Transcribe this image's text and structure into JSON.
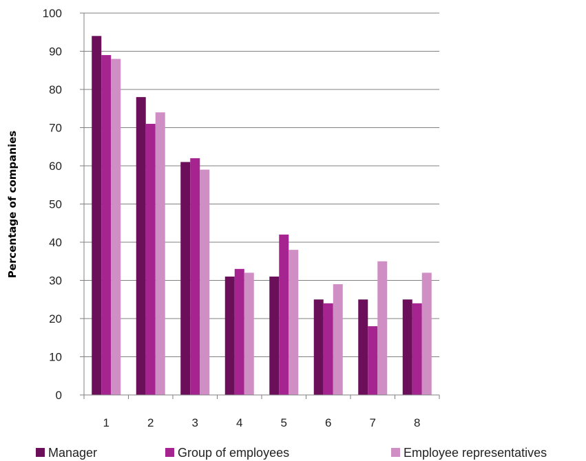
{
  "chart_data": {
    "type": "bar",
    "categories": [
      "1",
      "2",
      "3",
      "4",
      "5",
      "6",
      "7",
      "8"
    ],
    "series": [
      {
        "name": "Manager",
        "color": "#6b0f5a",
        "values": [
          94,
          78,
          61,
          31,
          31,
          25,
          25,
          25
        ]
      },
      {
        "name": "Group of employees",
        "color": "#a6248f",
        "values": [
          89,
          71,
          62,
          33,
          42,
          24,
          18,
          24
        ]
      },
      {
        "name": "Employee representatives",
        "color": "#cf8fc4",
        "values": [
          88,
          74,
          59,
          32,
          38,
          29,
          35,
          32
        ]
      }
    ],
    "title": "",
    "xlabel": "",
    "ylabel": "Percentage of companies",
    "ylim": [
      0,
      100
    ],
    "yticks": [
      0,
      10,
      20,
      30,
      40,
      50,
      60,
      70,
      80,
      90,
      100
    ],
    "grid": true,
    "legend_position": "bottom"
  }
}
